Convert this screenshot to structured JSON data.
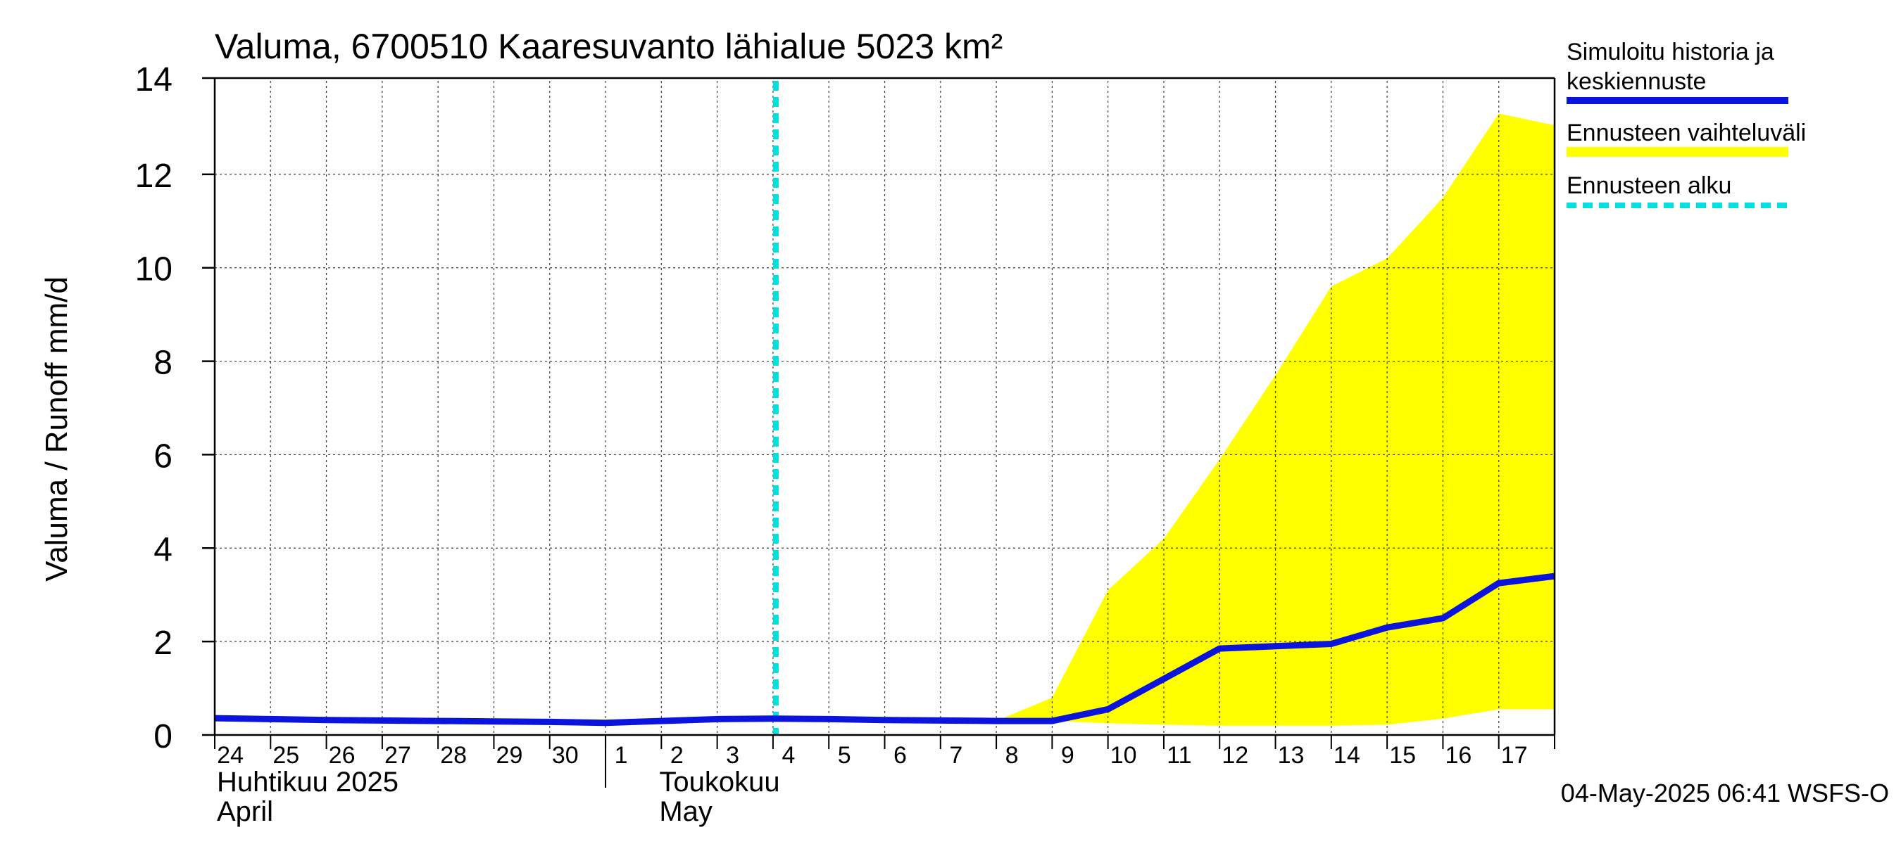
{
  "chart_data": {
    "type": "line",
    "title": "Valuma, 6700510 Kaaresuvanto lähialue 5023 km²",
    "ylabel": "Valuma / Runoff    mm/d",
    "ylim": [
      0,
      14
    ],
    "yticks": [
      0,
      2,
      4,
      6,
      8,
      10,
      12,
      14
    ],
    "x_start": "2025-04-24",
    "x_end": "2025-05-18",
    "day_ticks": [
      "24",
      "25",
      "26",
      "27",
      "28",
      "29",
      "30",
      "1",
      "2",
      "3",
      "4",
      "5",
      "6",
      "7",
      "8",
      "9",
      "10",
      "11",
      "12",
      "13",
      "14",
      "15",
      "16",
      "17"
    ],
    "month_labels": [
      {
        "fi": "Huhtikuu  2025",
        "en": "April"
      },
      {
        "fi": "Toukokuu",
        "en": "May"
      }
    ],
    "grid": true,
    "forecast_start": "2025-05-04",
    "series": [
      {
        "name": "Simuloitu historia ja keskiennuste",
        "color": "#0a14dc",
        "x": [
          "2025-04-24",
          "2025-04-25",
          "2025-04-26",
          "2025-04-27",
          "2025-04-28",
          "2025-04-29",
          "2025-04-30",
          "2025-05-01",
          "2025-05-02",
          "2025-05-03",
          "2025-05-04",
          "2025-05-05",
          "2025-05-06",
          "2025-05-07",
          "2025-05-08",
          "2025-05-09",
          "2025-05-10",
          "2025-05-11",
          "2025-05-12",
          "2025-05-13",
          "2025-05-14",
          "2025-05-15",
          "2025-05-16",
          "2025-05-17",
          "2025-05-18"
        ],
        "values": [
          0.36,
          0.34,
          0.32,
          0.31,
          0.3,
          0.29,
          0.28,
          0.26,
          0.3,
          0.34,
          0.35,
          0.34,
          0.32,
          0.31,
          0.3,
          0.3,
          0.55,
          1.2,
          1.85,
          1.9,
          1.95,
          2.3,
          2.5,
          3.25,
          3.4
        ]
      }
    ],
    "band": {
      "name": "Ennusteen vaihteluväli",
      "color": "#ffff00",
      "x": [
        "2025-05-08",
        "2025-05-09",
        "2025-05-10",
        "2025-05-11",
        "2025-05-12",
        "2025-05-13",
        "2025-05-14",
        "2025-05-15",
        "2025-05-16",
        "2025-05-17",
        "2025-05-18"
      ],
      "lower": [
        0.3,
        0.3,
        0.25,
        0.22,
        0.2,
        0.2,
        0.2,
        0.22,
        0.35,
        0.55,
        0.55
      ],
      "upper": [
        0.3,
        0.8,
        3.1,
        4.2,
        5.9,
        7.7,
        9.6,
        10.2,
        11.5,
        13.3,
        13.05
      ]
    },
    "legend": [
      {
        "label": "Simuloitu historia ja keskiennuste",
        "color": "#0a14dc",
        "style": "solid"
      },
      {
        "label": "Ennusteen vaihteluväli",
        "color": "#ffff00",
        "style": "solid"
      },
      {
        "label": "Ennusteen alku",
        "color": "#00e0e0",
        "style": "dashed"
      }
    ],
    "legend_position": "right"
  },
  "footer": {
    "timestamp": "04-May-2025 06:41 WSFS-O"
  }
}
